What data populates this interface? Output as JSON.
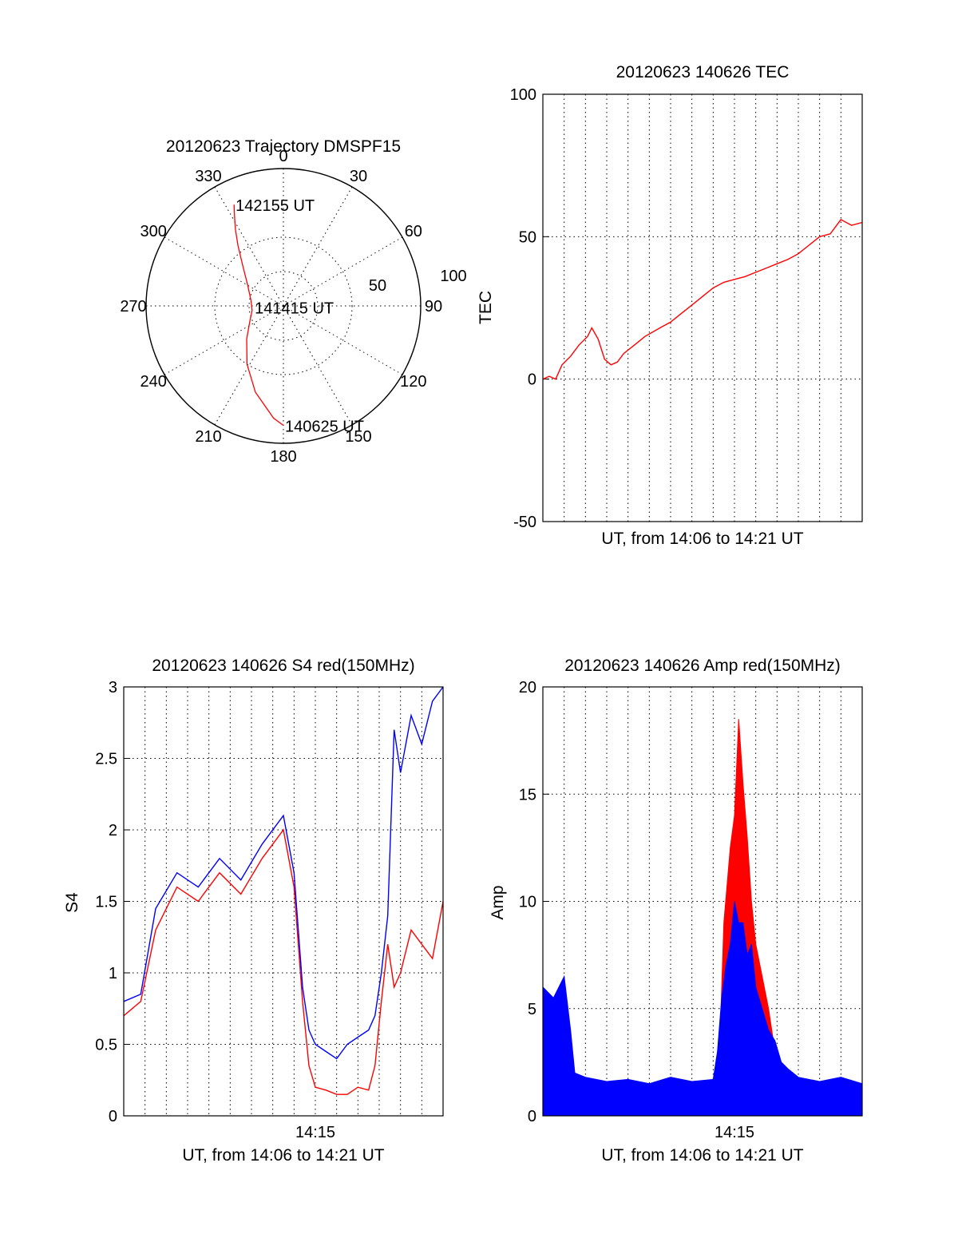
{
  "colors": {
    "red": "#ff0000",
    "blue": "#0000ff",
    "axis": "#000000"
  },
  "chart_data": [
    {
      "id": "polar",
      "type": "polar",
      "title": "20120623 Trajectory DMSPF15",
      "azimuth_ticks": [
        "0",
        "30",
        "60",
        "90",
        "120",
        "150",
        "180",
        "210",
        "240",
        "270",
        "300",
        "330"
      ],
      "radial_ticks": [
        "50",
        "100"
      ],
      "elevation_range": [
        0,
        100
      ],
      "trajectory": [
        {
          "az": 334,
          "el": 18
        },
        {
          "az": 332,
          "el": 24
        },
        {
          "az": 328,
          "el": 34
        },
        {
          "az": 323,
          "el": 45
        },
        {
          "az": 315,
          "el": 58
        },
        {
          "az": 300,
          "el": 70
        },
        {
          "az": 280,
          "el": 76
        },
        {
          "az": 262,
          "el": 77
        },
        {
          "az": 245,
          "el": 73
        },
        {
          "az": 228,
          "el": 64
        },
        {
          "az": 212,
          "el": 50
        },
        {
          "az": 198,
          "el": 34
        },
        {
          "az": 185,
          "el": 18
        },
        {
          "az": 180,
          "el": 13
        }
      ],
      "annotations": [
        {
          "text": "142155 UT",
          "az": 334,
          "el": 18
        },
        {
          "text": "141415 UT",
          "az": 268,
          "el": 78
        },
        {
          "text": "140625 UT",
          "az": 180,
          "el": 13
        }
      ],
      "series_color": "#ff0000"
    },
    {
      "id": "tec",
      "type": "line",
      "title": "20120623 140626 TEC",
      "xlabel": "UT, from 14:06 to 14:21 UT",
      "ylabel": "TEC",
      "ylim": [
        -50,
        100
      ],
      "yticks": [
        "-50",
        "0",
        "50",
        "100"
      ],
      "xlim": [
        0,
        15
      ],
      "x_grid_lines": 14,
      "series": [
        {
          "color": "#ff0000",
          "x": [
            0,
            0.3,
            0.6,
            0.9,
            1.3,
            1.7,
            2.1,
            2.3,
            2.6,
            2.9,
            3.2,
            3.5,
            3.8,
            4.3,
            4.8,
            5.5,
            6.0,
            6.5,
            7.0,
            7.5,
            8.0,
            8.5,
            9.0,
            9.5,
            10.0,
            10.5,
            11.0,
            11.5,
            12.0,
            12.5,
            13.0,
            13.5,
            14.0,
            14.5,
            15.0
          ],
          "y": [
            0,
            1,
            0,
            5,
            8,
            12,
            15,
            18,
            14,
            7,
            5,
            6,
            9,
            12,
            15,
            18,
            20,
            23,
            26,
            29,
            32,
            34,
            35,
            36,
            37.5,
            39,
            40.5,
            42,
            44,
            47,
            50,
            51,
            56,
            54,
            55
          ]
        }
      ]
    },
    {
      "id": "s4",
      "type": "line",
      "title": "20120623 140626 S4 red(150MHz)",
      "xlabel": "UT, from 14:06 to 14:21 UT",
      "ylabel": "S4",
      "ylim": [
        0,
        3
      ],
      "yticks": [
        "0",
        "0.5",
        "1",
        "1.5",
        "2",
        "2.5",
        "3"
      ],
      "xlim": [
        0,
        15
      ],
      "xticks": [
        {
          "value": 9,
          "label": "14:15"
        }
      ],
      "x_grid_lines": 14,
      "series": [
        {
          "color": "#ff0000",
          "x": [
            0,
            0.8,
            1.5,
            2.5,
            3.5,
            4.5,
            5.5,
            6.5,
            7.5,
            8.0,
            8.4,
            8.7,
            9.0,
            9.5,
            10.0,
            10.5,
            11.0,
            11.5,
            11.8,
            12.1,
            12.4,
            12.7,
            13.0,
            13.5,
            14.0,
            14.5,
            15.0
          ],
          "y": [
            0.7,
            0.8,
            1.3,
            1.6,
            1.5,
            1.7,
            1.55,
            1.8,
            2.0,
            1.6,
            0.8,
            0.35,
            0.2,
            0.18,
            0.15,
            0.15,
            0.2,
            0.18,
            0.35,
            0.8,
            1.2,
            0.9,
            1.0,
            1.3,
            1.2,
            1.1,
            1.5
          ]
        },
        {
          "color": "#0000ff",
          "x": [
            0,
            0.8,
            1.5,
            2.5,
            3.5,
            4.5,
            5.5,
            6.5,
            7.5,
            8.0,
            8.4,
            8.7,
            9.0,
            9.5,
            10.0,
            10.5,
            11.0,
            11.5,
            11.8,
            12.1,
            12.4,
            12.7,
            13.0,
            13.5,
            14.0,
            14.5,
            15.0
          ],
          "y": [
            0.8,
            0.85,
            1.45,
            1.7,
            1.6,
            1.8,
            1.65,
            1.9,
            2.1,
            1.7,
            0.9,
            0.6,
            0.5,
            0.45,
            0.4,
            0.5,
            0.55,
            0.6,
            0.7,
            1.0,
            1.4,
            2.7,
            2.4,
            2.8,
            2.6,
            2.9,
            3.0
          ]
        }
      ]
    },
    {
      "id": "amp",
      "type": "area",
      "title": "20120623 140626 Amp red(150MHz)",
      "xlabel": "UT, from 14:06 to 14:21 UT",
      "ylabel": "Amp",
      "ylim": [
        0,
        20
      ],
      "yticks": [
        "0",
        "5",
        "10",
        "15",
        "20"
      ],
      "xlim": [
        0,
        15
      ],
      "xticks": [
        {
          "value": 9,
          "label": "14:15"
        }
      ],
      "x_grid_lines": 14,
      "series": [
        {
          "color": "#ff0000",
          "x": [
            8.2,
            8.5,
            8.8,
            9.0,
            9.2,
            9.4,
            9.6,
            9.8,
            10.0,
            10.3,
            10.6,
            10.9,
            11.2
          ],
          "y": [
            0,
            9.0,
            12.5,
            14.0,
            18.5,
            15.5,
            13.0,
            10.0,
            8.0,
            6.5,
            5.0,
            3.0,
            0
          ]
        },
        {
          "color": "#0000ff",
          "x": [
            0,
            0.5,
            1.0,
            1.3,
            1.5,
            2.0,
            3.0,
            4.0,
            5.0,
            6.0,
            7.0,
            8.0,
            8.2,
            8.4,
            8.6,
            8.8,
            9.0,
            9.2,
            9.4,
            9.6,
            9.8,
            10.0,
            10.3,
            10.6,
            10.9,
            11.2,
            11.5,
            12.0,
            13.0,
            14.0,
            15.0
          ],
          "y": [
            6.0,
            5.5,
            6.5,
            4.0,
            2.0,
            1.8,
            1.6,
            1.7,
            1.5,
            1.8,
            1.6,
            1.7,
            3.0,
            5.5,
            7.0,
            8.0,
            10.0,
            9.0,
            9.0,
            7.5,
            8.0,
            6.0,
            5.0,
            4.0,
            3.5,
            2.5,
            2.2,
            1.8,
            1.6,
            1.8,
            1.5
          ]
        }
      ]
    }
  ]
}
